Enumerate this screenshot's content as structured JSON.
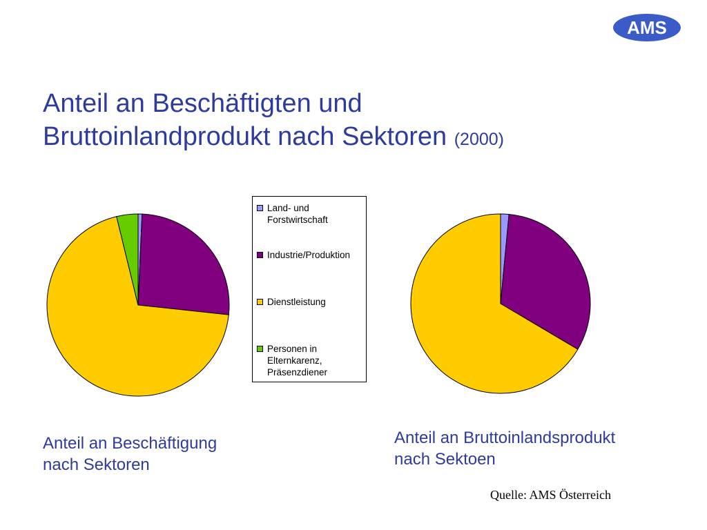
{
  "logo": {
    "text": "AMS"
  },
  "title": {
    "main_line1": "Anteil an Beschäftigten und",
    "main_line2": "Bruttoinlandprodukt nach Sektoren",
    "year": "(2000)"
  },
  "legend": {
    "items": [
      {
        "label": "Land- und\nForstwirtschaft",
        "color": "#9999ff"
      },
      {
        "label": "Industrie/Produktion",
        "color": "#800080"
      },
      {
        "label": "Dienstleistung",
        "color": "#ffcc00"
      },
      {
        "label": "Personen in\nElternkarenz,\nPräsenzdiener",
        "color": "#66cc00"
      }
    ]
  },
  "captions": {
    "left": "Anteil an Beschäftigung\nnach Sektoren",
    "right": "Anteil an Bruttoinlandsprodukt\nnach Sektoen"
  },
  "source": "Quelle: AMS Österreich",
  "chart_data": [
    {
      "type": "pie",
      "title": "Anteil an Beschäftigung nach Sektoren",
      "categories": [
        "Land- und Forstwirtschaft",
        "Industrie/Produktion",
        "Dienstleistung",
        "Personen in Elternkarenz, Präsenzdiener"
      ],
      "values": [
        0.7,
        26.0,
        69.5,
        3.8
      ],
      "colors": [
        "#9999ff",
        "#800080",
        "#ffcc00",
        "#66cc00"
      ],
      "unit": "%"
    },
    {
      "type": "pie",
      "title": "Anteil an Bruttoinlandsprodukt nach Sektoen",
      "categories": [
        "Land- und Forstwirtschaft",
        "Industrie/Produktion",
        "Dienstleistung",
        "Personen in Elternkarenz, Präsenzdiener"
      ],
      "values": [
        1.5,
        32.0,
        66.5,
        0
      ],
      "colors": [
        "#9999ff",
        "#800080",
        "#ffcc00",
        "#66cc00"
      ],
      "unit": "%"
    }
  ]
}
